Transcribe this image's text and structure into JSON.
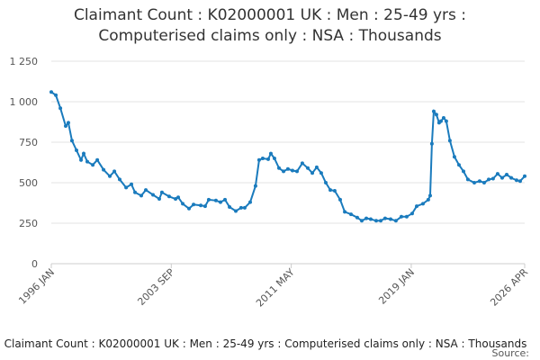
{
  "chart_data": {
    "type": "line",
    "title": [
      "Claimant Count : K02000001 UK : Men : 25-49 yrs :",
      "Computerised claims only : NSA : Thousands"
    ],
    "footer": "Claimant Count : K02000001 UK : Men : 25-49 yrs : Computerised claims only : NSA : Thousands",
    "source": "Source:",
    "xlim": [
      1996,
      2026.25
    ],
    "xticks": [
      {
        "value": 1996,
        "label": "1996 JAN"
      },
      {
        "value": 2003.667,
        "label": "2003 SEP"
      },
      {
        "value": 2011.333,
        "label": "2011 MAY"
      },
      {
        "value": 2019,
        "label": "2019 JAN"
      },
      {
        "value": 2026.25,
        "label": "2026 APR"
      }
    ],
    "ylim": [
      0,
      1250
    ],
    "yticks": [
      0,
      250,
      500,
      750,
      {
        "value": 1000,
        "label": "1 000"
      },
      {
        "value": 1250,
        "label": "1 250"
      }
    ],
    "grid": true,
    "series": [
      {
        "color": "#1a7bbd",
        "x": [
          1996.0,
          1996.29,
          1996.58,
          1996.92,
          1997.09,
          1997.32,
          1997.61,
          1997.9,
          1998.07,
          1998.3,
          1998.65,
          1998.94,
          1999.34,
          1999.74,
          2000.03,
          2000.37,
          2000.78,
          2001.12,
          2001.35,
          2001.75,
          2002.04,
          2002.5,
          2002.9,
          2003.07,
          2003.53,
          2003.94,
          2004.11,
          2004.4,
          2004.8,
          2005.09,
          2005.55,
          2005.83,
          2006.06,
          2006.52,
          2006.81,
          2007.1,
          2007.39,
          2007.79,
          2008.13,
          2008.36,
          2008.71,
          2009.05,
          2009.28,
          2009.51,
          2009.86,
          2010.03,
          2010.26,
          2010.55,
          2010.84,
          2011.12,
          2011.41,
          2011.7,
          2012.04,
          2012.39,
          2012.68,
          2012.96,
          2013.25,
          2013.54,
          2013.83,
          2014.11,
          2014.46,
          2014.75,
          2015.15,
          2015.55,
          2015.84,
          2016.13,
          2016.41,
          2016.76,
          2017.05,
          2017.33,
          2017.68,
          2018.02,
          2018.37,
          2018.71,
          2019.06,
          2019.35,
          2019.75,
          2020.09,
          2020.21,
          2020.32,
          2020.44,
          2020.61,
          2020.78,
          2020.9,
          2021.07,
          2021.24,
          2021.47,
          2021.76,
          2022.05,
          2022.34,
          2022.62,
          2023.03,
          2023.37,
          2023.66,
          2023.95,
          2024.23,
          2024.52,
          2024.81,
          2025.1,
          2025.39,
          2025.73,
          2025.96,
          2026.25
        ],
        "values": [
          1060,
          1040,
          960,
          850,
          870,
          760,
          700,
          640,
          680,
          630,
          610,
          640,
          580,
          540,
          570,
          520,
          470,
          490,
          440,
          420,
          455,
          425,
          400,
          440,
          415,
          400,
          410,
          370,
          340,
          365,
          360,
          355,
          395,
          390,
          380,
          395,
          350,
          325,
          345,
          345,
          380,
          480,
          640,
          650,
          645,
          680,
          650,
          590,
          570,
          585,
          575,
          570,
          620,
          590,
          560,
          595,
          560,
          500,
          455,
          450,
          395,
          320,
          305,
          285,
          265,
          280,
          275,
          265,
          265,
          280,
          275,
          265,
          290,
          290,
          310,
          355,
          370,
          395,
          420,
          740,
          940,
          920,
          870,
          880,
          900,
          880,
          760,
          660,
          610,
          570,
          520,
          500,
          510,
          500,
          520,
          525,
          555,
          530,
          550,
          530,
          515,
          510,
          540
        ]
      }
    ]
  }
}
